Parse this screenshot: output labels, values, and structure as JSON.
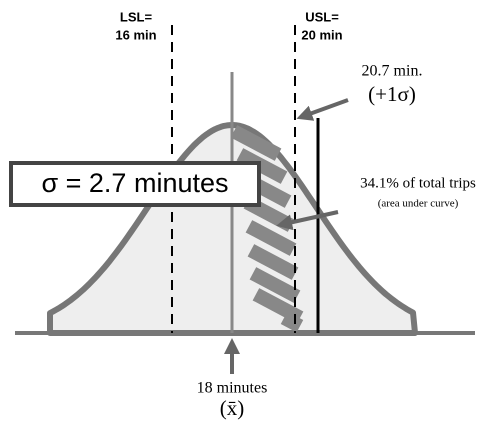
{
  "lsl": {
    "label": "LSL=",
    "value": "16 min"
  },
  "usl": {
    "label": "USL=",
    "value": "20 min"
  },
  "plus_sigma": {
    "value": "20.7 min.",
    "label": "(+1σ)"
  },
  "sigma_box": "σ = 2.7 minutes",
  "area": {
    "label": "34.1% of total trips",
    "note": "(area under curve)"
  },
  "mean": {
    "value": "18 minutes",
    "label": "(x̄)"
  }
}
